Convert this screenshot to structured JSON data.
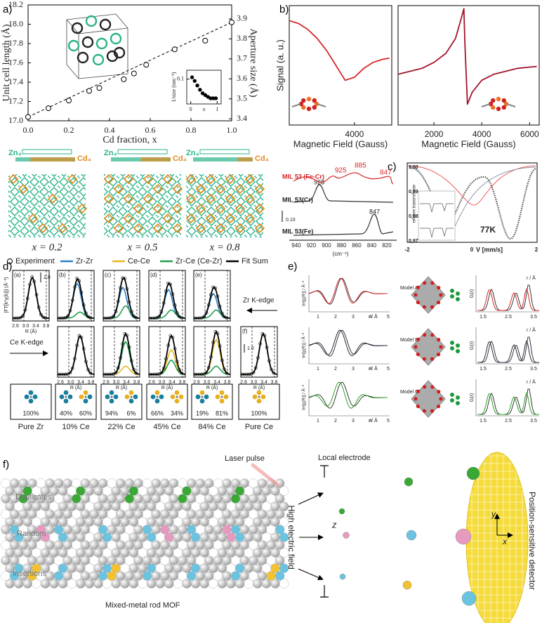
{
  "panel_labels": [
    "a)",
    "b)",
    "c)",
    "d)",
    "e)",
    "f)"
  ],
  "chart_data": [
    {
      "type": "scatter",
      "x": [
        0,
        0.1,
        0.2,
        0.3,
        0.35,
        0.47,
        0.52,
        0.58,
        0.72,
        0.87,
        1.0
      ],
      "values": [
        17.04,
        17.13,
        17.21,
        17.31,
        17.34,
        17.43,
        17.49,
        17.58,
        17.74,
        17.83,
        18.02
      ],
      "color": "#000000",
      "xlim": [
        0,
        1
      ],
      "ylim": [
        17.0,
        18.2
      ],
      "y2lim": [
        3.39,
        3.97
      ],
      "xticks": [
        {
          "value": 0,
          "label": "0.0"
        },
        0.2,
        0.4,
        0.6,
        0.8,
        {
          "value": 1,
          "label": "1.0"
        }
      ],
      "yticks": [
        {
          "value": 17,
          "label": "17.0"
        },
        17.2,
        17.4,
        17.6,
        17.8,
        {
          "value": 18,
          "label": "18.0"
        },
        18.2
      ],
      "y2ticks": [
        3.4,
        3.5,
        3.6,
        3.7,
        3.8,
        3.9
      ],
      "xlabel": "Cd fraction, x",
      "ylabel": "Unit cell length (Å)",
      "y2label": "Aperture size (Å)"
    },
    {
      "type": "scatter",
      "x": [
        0.05,
        0.15,
        0.25,
        0.35,
        0.45,
        0.55,
        0.65,
        0.75,
        0.85,
        0.95
      ],
      "values": [
        0.105,
        0.095,
        0.082,
        0.07,
        0.06,
        0.055,
        0.05,
        0.046,
        0.046,
        0.046
      ],
      "color": "#000000",
      "xlim": [
        -0.15,
        1.15
      ],
      "ylim": [
        0.03,
        0.125
      ],
      "xticks": [
        0,
        1
      ],
      "yticks": [
        0.1
      ],
      "xlabel": "x",
      "ylabel": "1/size (nm⁻¹)"
    },
    {
      "type": "line",
      "x": [
        1200,
        1600,
        2000,
        2400,
        2800,
        3200,
        3600,
        4000,
        4400,
        4800,
        5200,
        5500
      ],
      "values": [
        0.75,
        0.7,
        0.6,
        0.45,
        0.25,
        0.0,
        -0.25,
        -0.2,
        -0.05,
        0.05,
        0.1,
        0.12
      ],
      "color": "#d62728",
      "xlim": [
        1200,
        5600
      ],
      "ylim": [
        -1,
        1
      ],
      "xticks": [
        4000
      ],
      "xlabel": "Magnetic Field (Gauss)",
      "ylabel": "Signal (a. u.)"
    },
    {
      "type": "line",
      "x": [
        500,
        1000,
        1500,
        2000,
        2500,
        2900,
        3150,
        3250,
        3300,
        3400,
        3600,
        4000,
        4500,
        5000,
        5500,
        6000,
        6300
      ],
      "values": [
        -0.15,
        -0.1,
        -0.05,
        0.05,
        0.2,
        0.45,
        0.8,
        0.95,
        0.3,
        -0.65,
        -0.45,
        -0.25,
        -0.15,
        -0.1,
        -0.05,
        -0.03,
        -0.02
      ],
      "color": "#a3142c",
      "xlim": [
        500,
        6400
      ],
      "ylim": [
        -1,
        1
      ],
      "xticks": [
        2000,
        4000,
        6000
      ],
      "xlabel": "Magnetic Field (Gauss)"
    }
  ],
  "panel_a": {
    "compositions": [
      {
        "start": "Zn₄",
        "end": "Cd₄",
        "caption": "x = 0.2"
      },
      {
        "start": "Zn₄",
        "end": "Cd₄",
        "caption": "x = 0.5"
      },
      {
        "start": "Zn₄",
        "end": "Cd₄",
        "caption": "x = 0.8"
      }
    ]
  },
  "panel_c": {
    "ir": {
      "samples": [
        "MIL 53 (Fe-Cr)",
        "MIL 53(Cr)",
        "MIL 53(Fe)"
      ],
      "peaks": [
        "925",
        "885",
        "847",
        "928",
        "847"
      ],
      "scale": "0.10",
      "xticks": [
        "940",
        "920",
        "900",
        "880",
        "860",
        "840",
        "820"
      ],
      "xlabel": "(cm⁻¹)"
    },
    "mossbauer": {
      "yticks": [
        "1,00",
        "0,99",
        "0,98",
        "0,97"
      ],
      "xticks": [
        "-2",
        "0",
        "2"
      ],
      "xlabel": "V [mm/s]",
      "ylabel": "relative transmission",
      "temperature": "77K"
    }
  },
  "panel_d": {
    "legend": [
      "Experiment",
      "Zr-Zr",
      "Ce-Ce",
      "Zr-Ce (Ce-Zr)",
      "Fit Sum"
    ],
    "ylabel": "|FT[k²χ(k)]| (Å⁻³)",
    "scale_top": "2.0",
    "scale_bottom": "1.0",
    "subplots": [
      "(a)",
      "(b)",
      "(c)",
      "(d)",
      "(e)",
      "(f)"
    ],
    "xticks": [
      "2.6",
      "3.0",
      "3.4",
      "3.8"
    ],
    "xlabel": "R (Å)",
    "edges": [
      "Zr K-edge",
      "Ce K-edge"
    ],
    "boxes": [
      {
        "percents": [
          "100%"
        ],
        "caption": "Pure Zr"
      },
      {
        "percents": [
          "40%",
          "60%"
        ],
        "caption": "10% Ce"
      },
      {
        "percents": [
          "94%",
          "6%"
        ],
        "caption": "22% Ce"
      },
      {
        "percents": [
          "66%",
          "34%"
        ],
        "caption": "45% Ce"
      },
      {
        "percents": [
          "19%",
          "81%"
        ],
        "caption": "84% Ce"
      },
      {
        "percents": [
          "100%"
        ],
        "caption": "Pure Ce"
      }
    ]
  },
  "panel_e": {
    "models": [
      "Model A",
      "Model B",
      "Model C"
    ],
    "left_ylabel": "Im[χ(R)] / Å⁻³",
    "xlabel": "r / Å",
    "left_xticks": [
      "1",
      "2",
      "3",
      "4",
      "5"
    ],
    "right_ylabel": "G(r)",
    "right_xticks": [
      "1.5",
      "2.5",
      "3.5"
    ]
  },
  "panel_f": {
    "laser": "Laser pulse",
    "electrode": "Local electrode",
    "rows": [
      "Duplicates",
      "Random",
      "Insertions"
    ],
    "field": "High electric field",
    "z": "z",
    "y": "y",
    "x": "x",
    "detector": "Position-sensitive detector",
    "caption": "Mixed-metal rod MOF"
  }
}
